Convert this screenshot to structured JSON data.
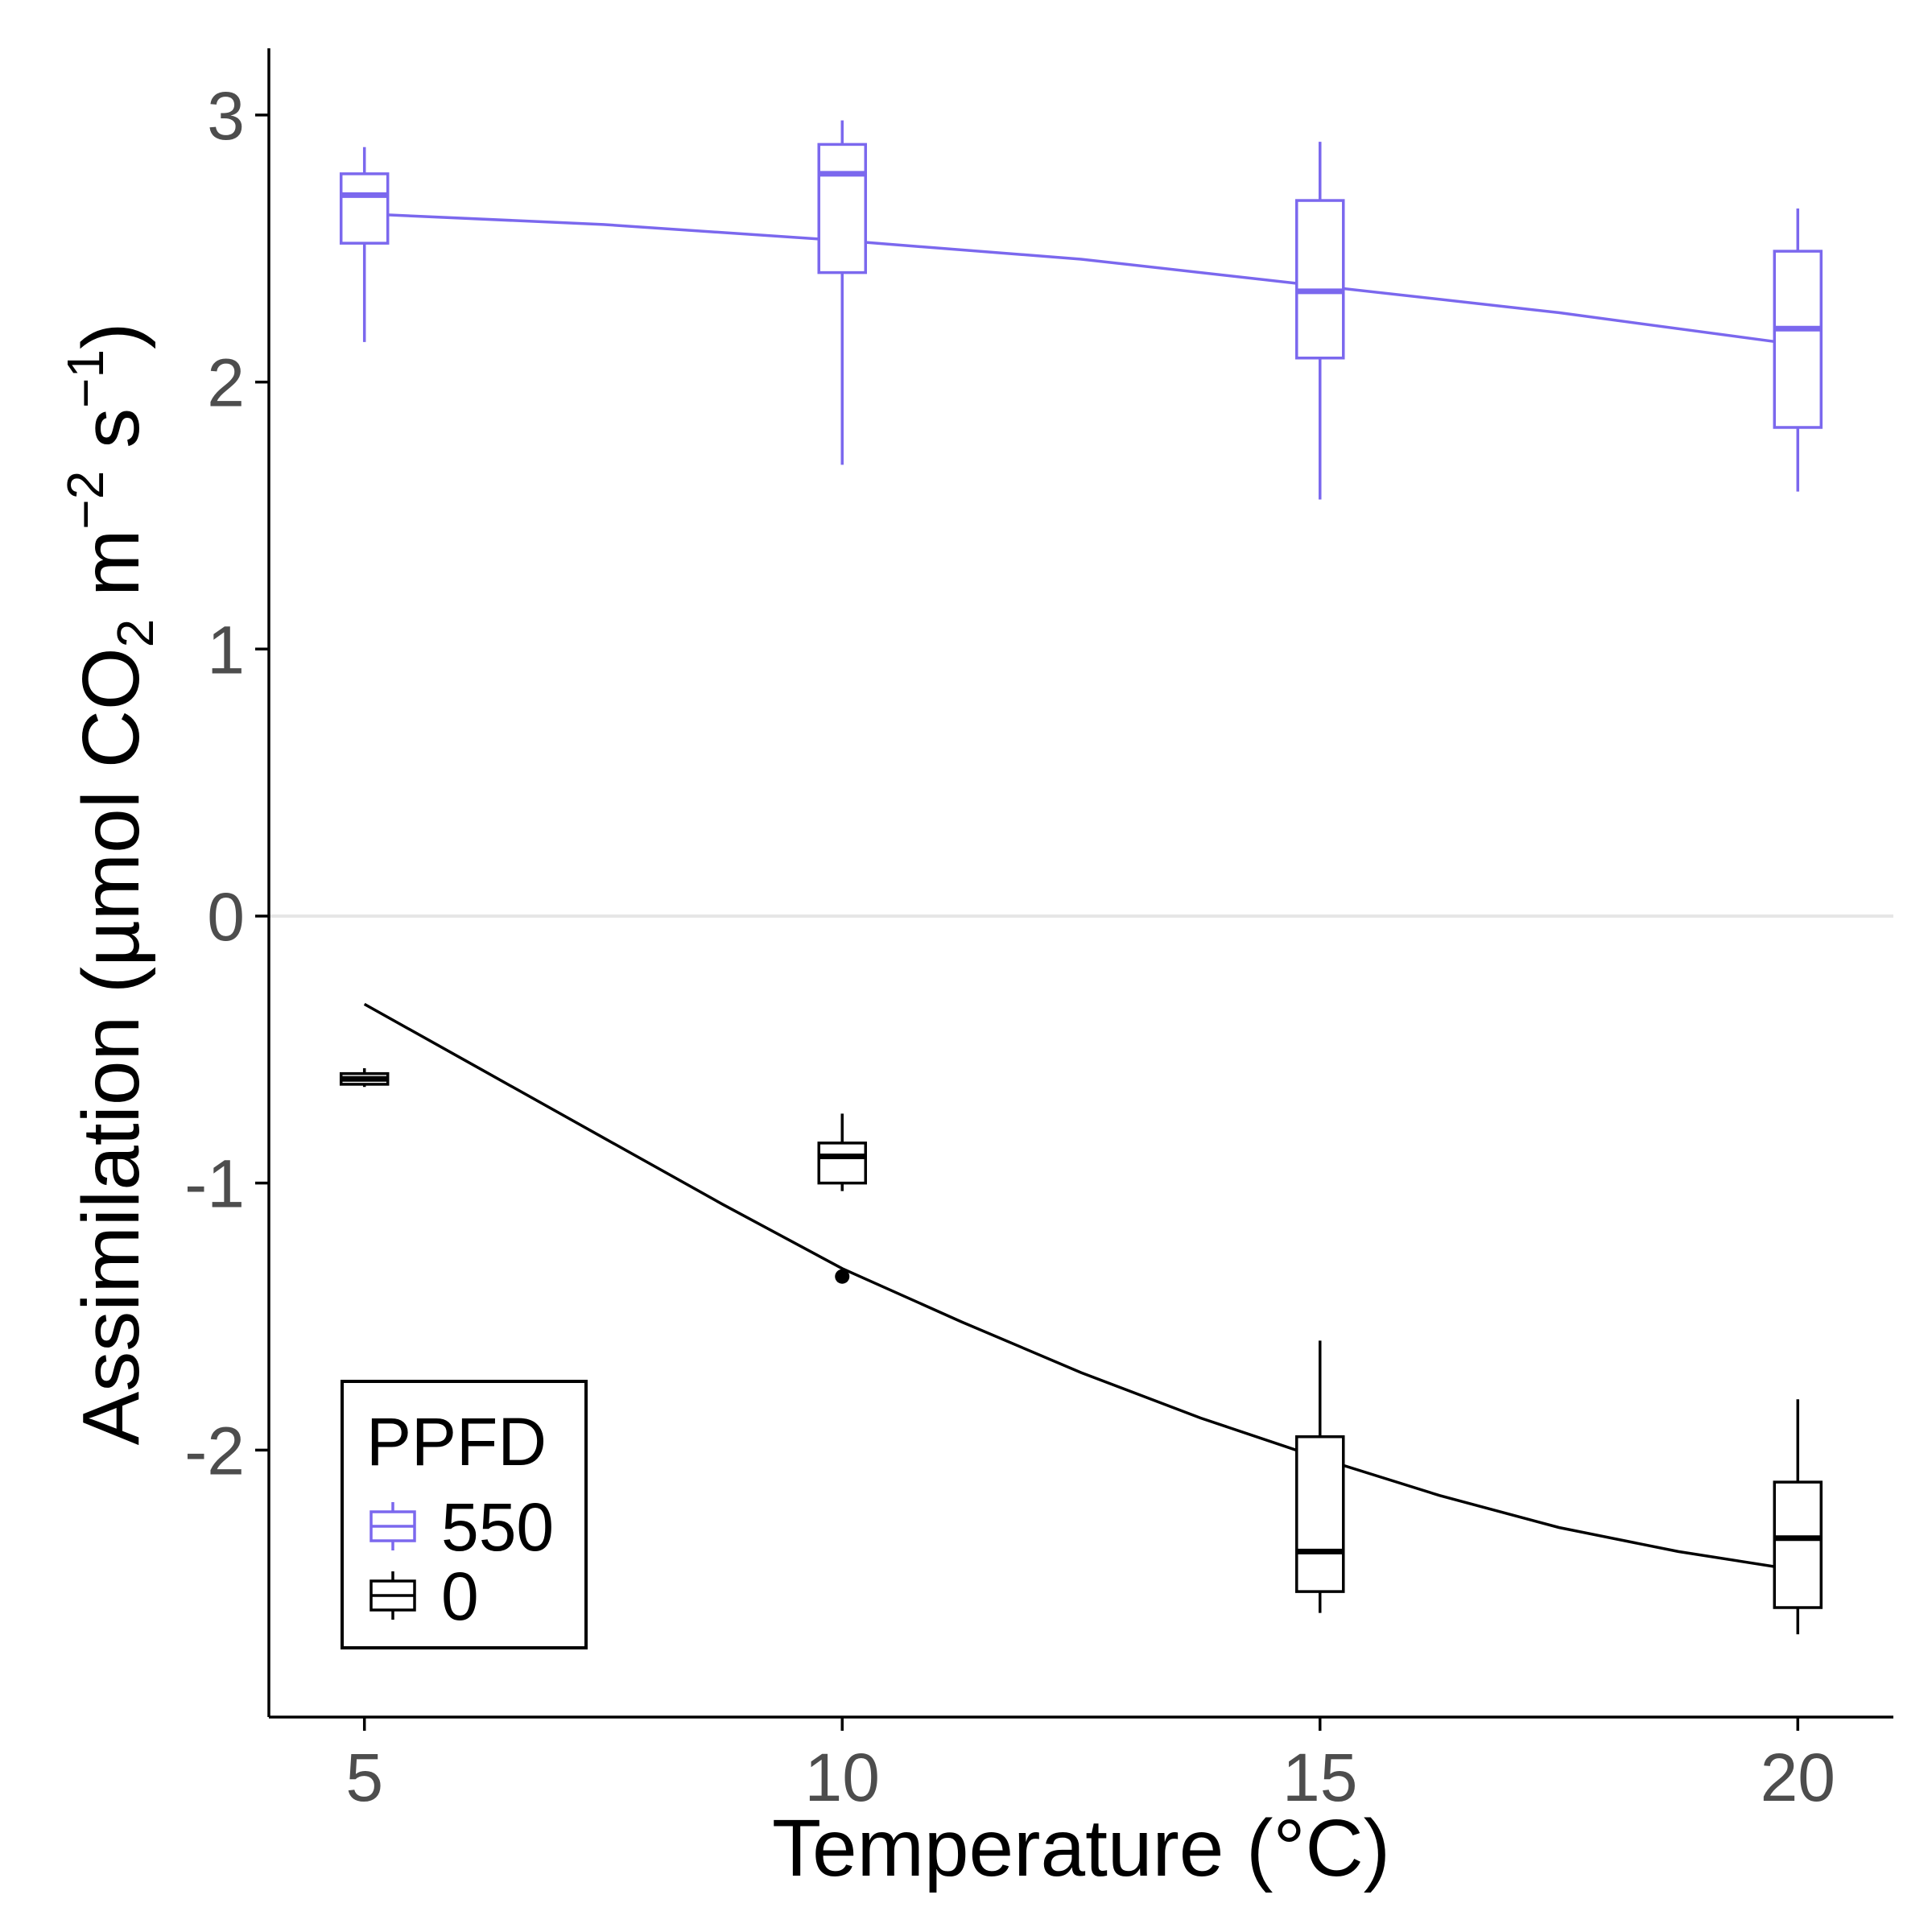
{
  "chart_data": {
    "type": "box",
    "xlabel": "Temperature (°C)",
    "ylabel": {
      "prefix": "Assimilation (µmol CO",
      "sub": "2",
      "mid": " m",
      "sup1": "−2",
      "mid2": " s",
      "sup2": "−1",
      "suffix": ")"
    },
    "xlim": [
      4,
      21
    ],
    "ylim": [
      -3,
      3.25
    ],
    "x_ticks": [
      5,
      10,
      15,
      20
    ],
    "y_ticks": [
      -2,
      -1,
      0,
      1,
      2,
      3
    ],
    "x_tick_labels": [
      "5",
      "10",
      "15",
      "20"
    ],
    "y_tick_labels": [
      "-2",
      "-1",
      "0",
      "1",
      "2",
      "3"
    ],
    "reference_line_y": 0,
    "legend": {
      "title": "PPFD",
      "placement": "bottom-left"
    },
    "series": [
      {
        "name": "550",
        "color": "#7b68ee",
        "boxes": [
          {
            "x": 5,
            "whisker_low": 2.15,
            "q1": 2.52,
            "median": 2.7,
            "q3": 2.78,
            "whisker_high": 2.88
          },
          {
            "x": 10,
            "whisker_low": 1.69,
            "q1": 2.41,
            "median": 2.78,
            "q3": 2.89,
            "whisker_high": 2.98
          },
          {
            "x": 15,
            "whisker_low": 1.56,
            "q1": 2.09,
            "median": 2.34,
            "q3": 2.68,
            "whisker_high": 2.9
          },
          {
            "x": 20,
            "whisker_low": 1.59,
            "q1": 1.83,
            "median": 2.2,
            "q3": 2.49,
            "whisker_high": 2.65
          }
        ],
        "outliers": [],
        "fit": {
          "x": [
            5,
            7.5,
            10,
            12.5,
            15,
            17.5,
            20
          ],
          "y": [
            2.63,
            2.59,
            2.53,
            2.46,
            2.36,
            2.26,
            2.14
          ]
        }
      },
      {
        "name": "0",
        "color": "#000000",
        "boxes": [
          {
            "x": 5,
            "whisker_low": -0.64,
            "q1": -0.63,
            "median": -0.61,
            "q3": -0.59,
            "whisker_high": -0.57
          },
          {
            "x": 10,
            "whisker_low": -1.03,
            "q1": -1.0,
            "median": -0.9,
            "q3": -0.85,
            "whisker_high": -0.74
          },
          {
            "x": 15,
            "whisker_low": -2.61,
            "q1": -2.53,
            "median": -2.38,
            "q3": -1.95,
            "whisker_high": -1.59
          },
          {
            "x": 20,
            "whisker_low": -2.69,
            "q1": -2.59,
            "median": -2.33,
            "q3": -2.12,
            "whisker_high": -1.81
          }
        ],
        "outliers": [
          {
            "x": 10,
            "y": -1.35
          }
        ],
        "fit": {
          "x": [
            5,
            6.25,
            7.5,
            8.75,
            10,
            11.25,
            12.5,
            13.75,
            15,
            16.25,
            17.5,
            18.75,
            20
          ],
          "y": [
            -0.33,
            -0.58,
            -0.83,
            -1.08,
            -1.32,
            -1.52,
            -1.71,
            -1.88,
            -2.03,
            -2.17,
            -2.29,
            -2.38,
            -2.45
          ]
        }
      }
    ]
  }
}
